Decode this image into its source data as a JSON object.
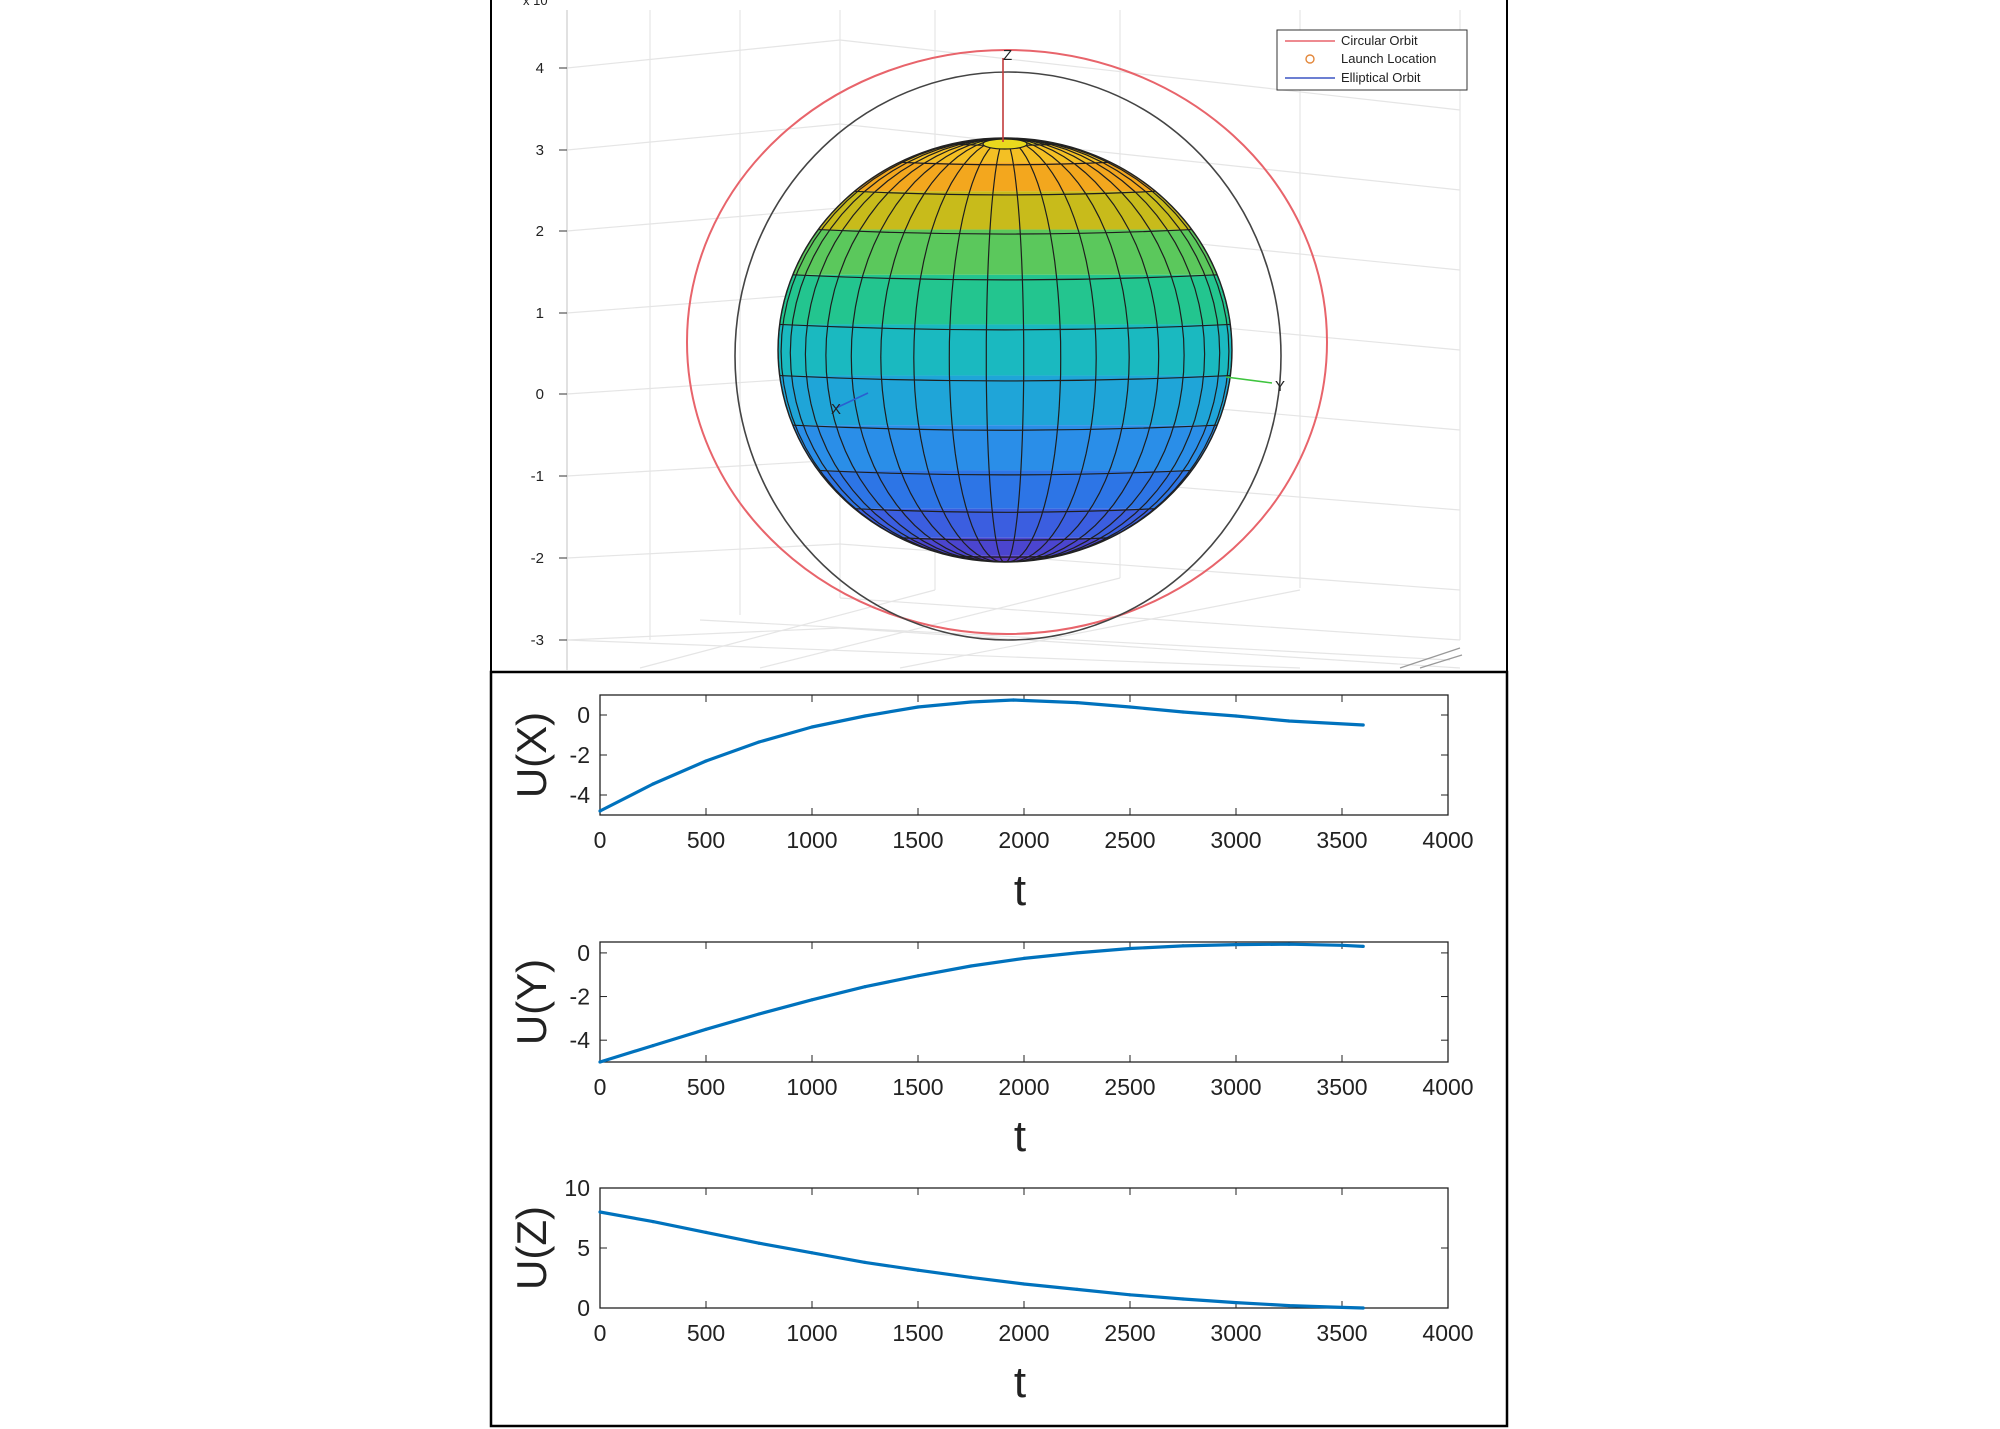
{
  "figure": {
    "top_panel": {
      "partial_label": "x 10",
      "z_ticks": [
        "4",
        "3",
        "2",
        "1",
        "0",
        "-1",
        "-2",
        "-3"
      ],
      "axis_labels": {
        "x": "X",
        "y": "Y",
        "z": "Z"
      },
      "legend": [
        {
          "label": "Circular Orbit",
          "color": "#e8646b",
          "marker": "line"
        },
        {
          "label": "Launch Location",
          "color": "#e3873a",
          "marker": "circle"
        },
        {
          "label": "Elliptical Orbit",
          "color": "#3b55c4",
          "marker": "line"
        }
      ],
      "sphere_colors": [
        "#f7e31f",
        "#f4c024",
        "#f3a71e",
        "#c8bb1b",
        "#5bc85c",
        "#23c58f",
        "#1ab9c0",
        "#1fa5d8",
        "#2a8ee8",
        "#2d75e6",
        "#3b5ee0",
        "#4b45cf",
        "#5a38c0"
      ],
      "grid_color": "#e5e5e5"
    }
  },
  "chart_data": [
    {
      "type": "line",
      "ylabel": "U(X)",
      "xlabel": "t",
      "xlim": [
        0,
        4000
      ],
      "ylim": [
        -5,
        1
      ],
      "xticks": [
        "0",
        "500",
        "1000",
        "1500",
        "2000",
        "2500",
        "3000",
        "3500",
        "4000"
      ],
      "yticks": [
        "0",
        "-2",
        "-4"
      ],
      "ytick_values": [
        0,
        -2,
        -4
      ],
      "color": "#0072bd",
      "x": [
        0,
        250,
        500,
        750,
        1000,
        1250,
        1500,
        1750,
        1950,
        2250,
        2500,
        2750,
        3000,
        3250,
        3600
      ],
      "y": [
        -4.8,
        -3.45,
        -2.3,
        -1.35,
        -0.6,
        -0.05,
        0.4,
        0.65,
        0.75,
        0.62,
        0.4,
        0.15,
        -0.05,
        -0.3,
        -0.5
      ]
    },
    {
      "type": "line",
      "ylabel": "U(Y)",
      "xlabel": "t",
      "xlim": [
        0,
        4000
      ],
      "ylim": [
        -5,
        0.5
      ],
      "xticks": [
        "0",
        "500",
        "1000",
        "1500",
        "2000",
        "2500",
        "3000",
        "3500",
        "4000"
      ],
      "yticks": [
        "0",
        "-2",
        "-4"
      ],
      "ytick_values": [
        0,
        -2,
        -4
      ],
      "color": "#0072bd",
      "x": [
        0,
        250,
        500,
        750,
        1000,
        1250,
        1500,
        1750,
        2000,
        2250,
        2500,
        2750,
        3000,
        3250,
        3500,
        3600
      ],
      "y": [
        -5.0,
        -4.25,
        -3.5,
        -2.8,
        -2.15,
        -1.55,
        -1.05,
        -0.6,
        -0.25,
        0.0,
        0.2,
        0.32,
        0.38,
        0.4,
        0.35,
        0.3
      ]
    },
    {
      "type": "line",
      "ylabel": "U(Z)",
      "xlabel": "t",
      "xlim": [
        0,
        4000
      ],
      "ylim": [
        0,
        10
      ],
      "xticks": [
        "0",
        "500",
        "1000",
        "1500",
        "2000",
        "2500",
        "3000",
        "3500",
        "4000"
      ],
      "yticks": [
        "10",
        "5",
        "0"
      ],
      "ytick_values": [
        10,
        5,
        0
      ],
      "color": "#0072bd",
      "x": [
        0,
        250,
        500,
        750,
        1000,
        1250,
        1500,
        1750,
        2000,
        2250,
        2500,
        2750,
        3000,
        3250,
        3500,
        3600
      ],
      "y": [
        8.0,
        7.2,
        6.3,
        5.4,
        4.6,
        3.8,
        3.15,
        2.55,
        2.0,
        1.55,
        1.1,
        0.75,
        0.45,
        0.2,
        0.05,
        0.0
      ]
    }
  ]
}
